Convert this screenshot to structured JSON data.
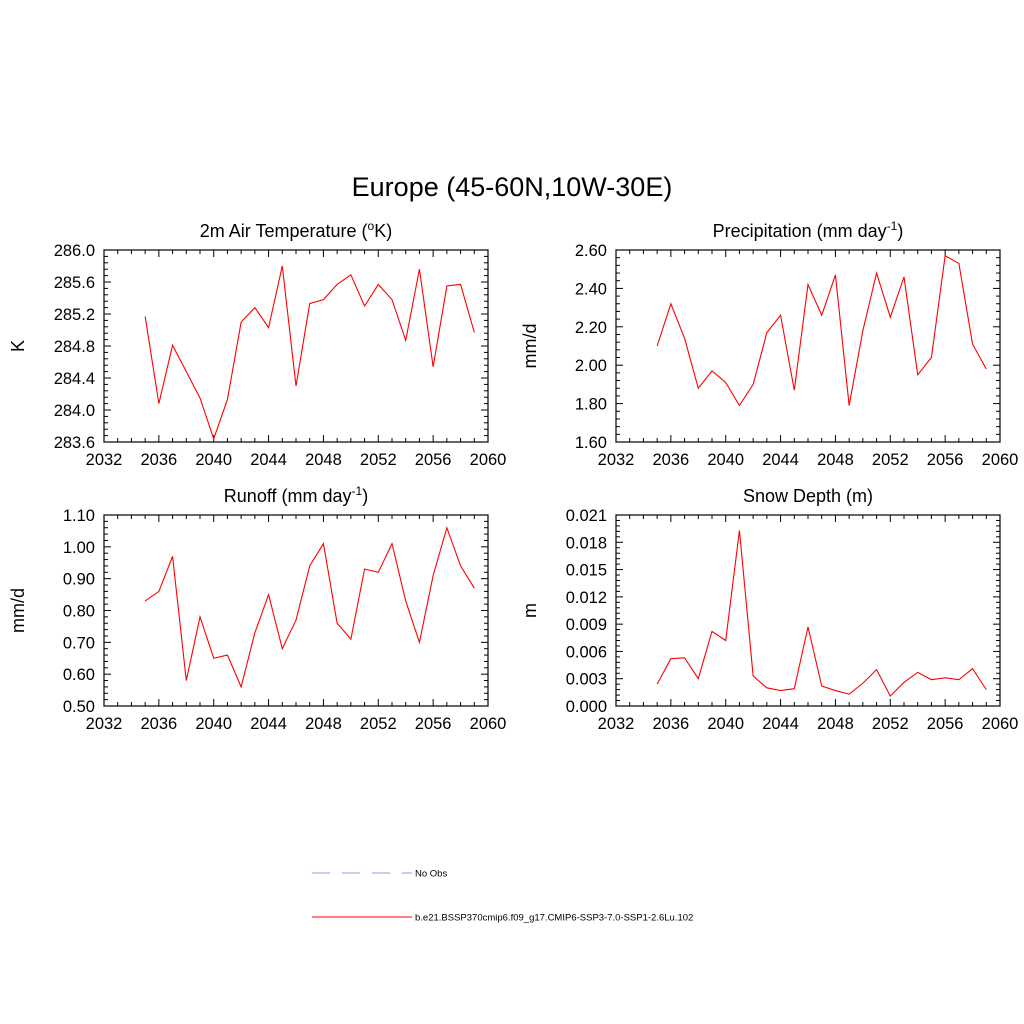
{
  "title": "Europe (45-60N,10W-30E)",
  "colors": {
    "model": "#ff0000",
    "obs": "#9999dd",
    "axis": "#000000"
  },
  "legend": [
    {
      "label": "No Obs",
      "style": "dashed",
      "color": "#9999dd"
    },
    {
      "label": "b.e21.BSSP370cmip6.f09_g17.CMIP6-SSP3-7.0-SSP1-2.6Lu.102",
      "style": "solid",
      "color": "#ff0000"
    }
  ],
  "chart_data": [
    {
      "type": "line",
      "title": "2m Air Temperature (",
      "title_sup": "o",
      "title_end": "K)",
      "ylabel": "K",
      "xlim": [
        2032,
        2060
      ],
      "ylim": [
        283.6,
        286.0
      ],
      "xticks": [
        2032,
        2036,
        2040,
        2044,
        2048,
        2052,
        2056,
        2060
      ],
      "yticks": [
        "283.6",
        "284.0",
        "284.4",
        "284.8",
        "285.2",
        "285.6",
        "286.0"
      ],
      "x": [
        2035,
        2036,
        2037,
        2038,
        2039,
        2040,
        2041,
        2042,
        2043,
        2044,
        2045,
        2046,
        2047,
        2048,
        2049,
        2050,
        2051,
        2052,
        2053,
        2054,
        2055,
        2056,
        2057,
        2058,
        2059
      ],
      "series": [
        {
          "values": [
            285.17,
            284.08,
            284.81,
            284.48,
            284.15,
            283.64,
            284.13,
            285.1,
            285.28,
            285.03,
            285.8,
            284.3,
            285.33,
            285.38,
            285.57,
            285.69,
            285.3,
            285.57,
            285.38,
            284.87,
            285.76,
            284.54,
            285.55,
            285.57,
            284.97
          ]
        }
      ]
    },
    {
      "type": "line",
      "title": "Precipitation (mm day",
      "title_sup": "-1",
      "title_end": ")",
      "ylabel": "mm/d",
      "xlim": [
        2032,
        2060
      ],
      "ylim": [
        1.6,
        2.6
      ],
      "xticks": [
        2032,
        2036,
        2040,
        2044,
        2048,
        2052,
        2056,
        2060
      ],
      "yticks": [
        "1.60",
        "1.80",
        "2.00",
        "2.20",
        "2.40",
        "2.60"
      ],
      "x": [
        2035,
        2036,
        2037,
        2038,
        2039,
        2040,
        2041,
        2042,
        2043,
        2044,
        2045,
        2046,
        2047,
        2048,
        2049,
        2050,
        2051,
        2052,
        2053,
        2054,
        2055,
        2056,
        2057,
        2058,
        2059
      ],
      "series": [
        {
          "values": [
            2.1,
            2.32,
            2.14,
            1.88,
            1.97,
            1.91,
            1.79,
            1.9,
            2.17,
            2.26,
            1.87,
            2.42,
            2.26,
            2.47,
            1.79,
            2.18,
            2.48,
            2.25,
            2.46,
            1.95,
            2.04,
            2.57,
            2.53,
            2.11,
            1.98
          ]
        }
      ]
    },
    {
      "type": "line",
      "title": "Runoff (mm day",
      "title_sup": "-1",
      "title_end": ")",
      "ylabel": "mm/d",
      "xlim": [
        2032,
        2060
      ],
      "ylim": [
        0.5,
        1.1
      ],
      "xticks": [
        2032,
        2036,
        2040,
        2044,
        2048,
        2052,
        2056,
        2060
      ],
      "yticks": [
        "0.50",
        "0.60",
        "0.70",
        "0.80",
        "0.90",
        "1.00",
        "1.10"
      ],
      "x": [
        2035,
        2036,
        2037,
        2038,
        2039,
        2040,
        2041,
        2042,
        2043,
        2044,
        2045,
        2046,
        2047,
        2048,
        2049,
        2050,
        2051,
        2052,
        2053,
        2054,
        2055,
        2056,
        2057,
        2058,
        2059
      ],
      "series": [
        {
          "values": [
            0.83,
            0.86,
            0.97,
            0.58,
            0.78,
            0.65,
            0.66,
            0.56,
            0.73,
            0.85,
            0.68,
            0.77,
            0.94,
            1.01,
            0.76,
            0.71,
            0.93,
            0.92,
            1.01,
            0.83,
            0.7,
            0.91,
            1.06,
            0.94,
            0.87
          ]
        }
      ]
    },
    {
      "type": "line",
      "title": "Snow Depth (m)",
      "title_sup": "",
      "title_end": "",
      "ylabel": "m",
      "xlim": [
        2032,
        2060
      ],
      "ylim": [
        0.0,
        0.021
      ],
      "xticks": [
        2032,
        2036,
        2040,
        2044,
        2048,
        2052,
        2056,
        2060
      ],
      "yticks": [
        "0.000",
        "0.003",
        "0.006",
        "0.009",
        "0.012",
        "0.015",
        "0.018",
        "0.021"
      ],
      "x": [
        2035,
        2036,
        2037,
        2038,
        2039,
        2040,
        2041,
        2042,
        2043,
        2044,
        2045,
        2046,
        2047,
        2048,
        2049,
        2050,
        2051,
        2052,
        2053,
        2054,
        2055,
        2056,
        2057,
        2058,
        2059
      ],
      "series": [
        {
          "values": [
            0.0024,
            0.0052,
            0.0053,
            0.003,
            0.0082,
            0.0072,
            0.0193,
            0.0033,
            0.002,
            0.0017,
            0.0019,
            0.0087,
            0.0022,
            0.0017,
            0.0013,
            0.0025,
            0.004,
            0.0011,
            0.0026,
            0.0037,
            0.0029,
            0.0031,
            0.0029,
            0.0041,
            0.0018
          ]
        }
      ]
    }
  ]
}
